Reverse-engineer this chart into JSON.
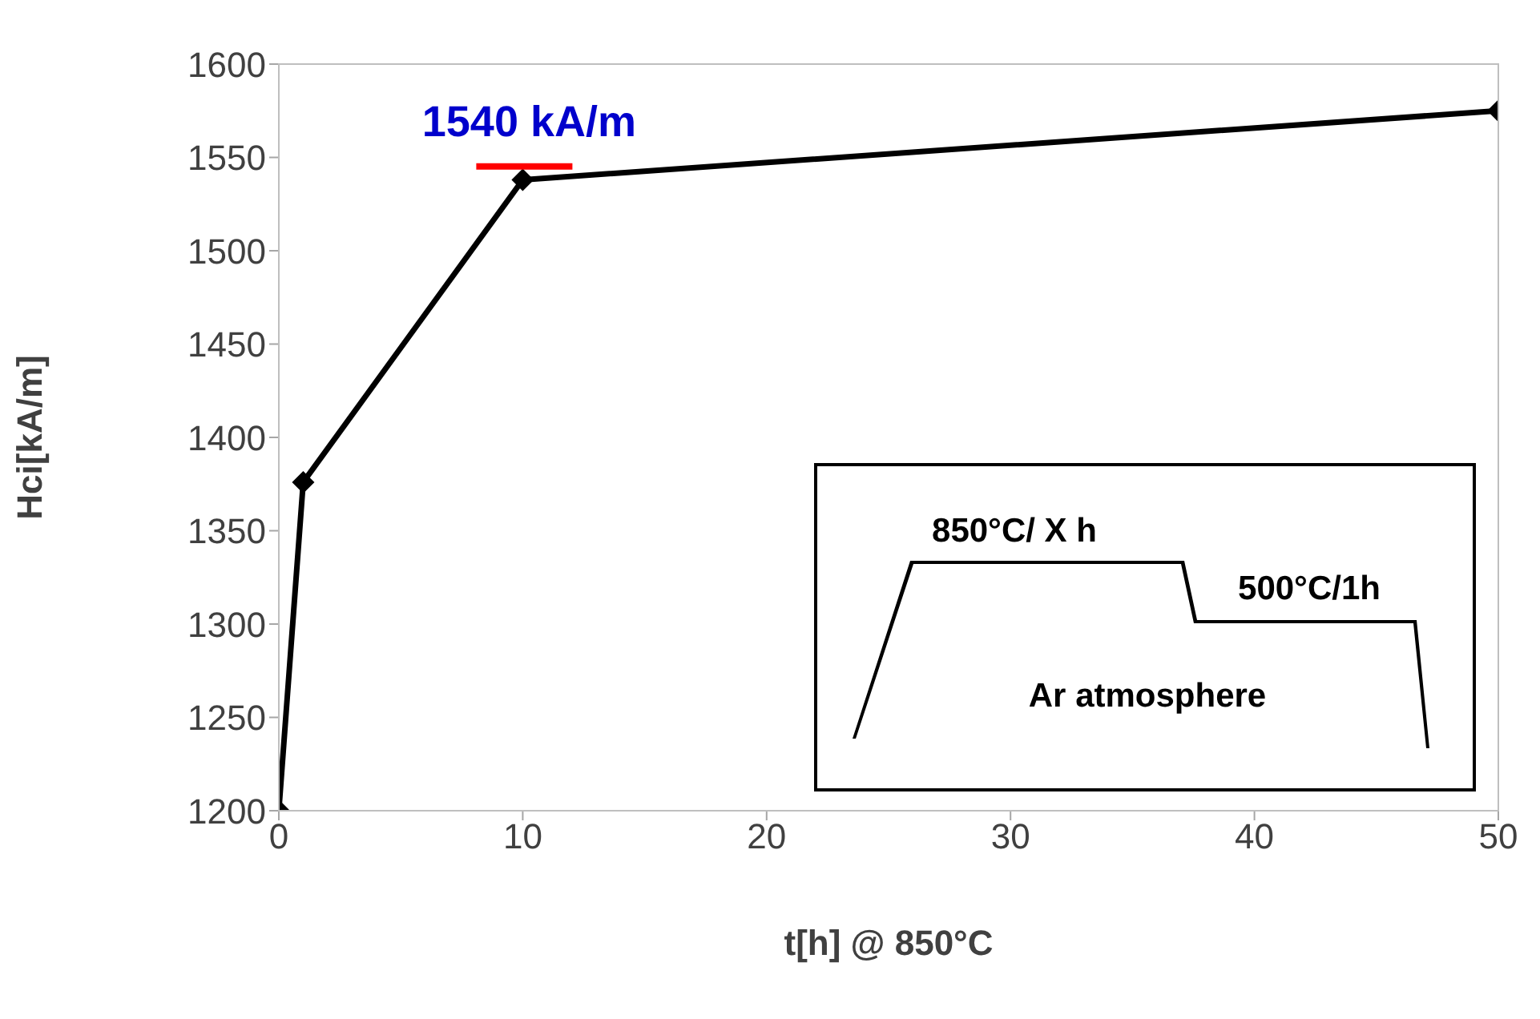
{
  "chart_data": {
    "type": "line",
    "x": [
      0,
      1,
      10,
      50
    ],
    "series": [
      {
        "color": "#000000",
        "values": [
          1200,
          1376,
          1538,
          1575
        ]
      }
    ],
    "xlabel": "t[h] @ 850°C",
    "ylabel": "Hci[kA/m]",
    "xlim": [
      0,
      50
    ],
    "xticks": [
      0,
      10,
      20,
      30,
      40,
      50
    ],
    "ylim": [
      1200,
      1600
    ],
    "yticks": [
      1200,
      1250,
      1300,
      1350,
      1400,
      1450,
      1500,
      1550,
      1600
    ],
    "marker": "diamond",
    "grid": false,
    "legend": false,
    "annotations": [
      {
        "text": "1540 kA/m",
        "x": 10,
        "y": 1540
      },
      "850°C/ X h",
      "500°C/1h",
      "Ar atmosphere"
    ]
  }
}
